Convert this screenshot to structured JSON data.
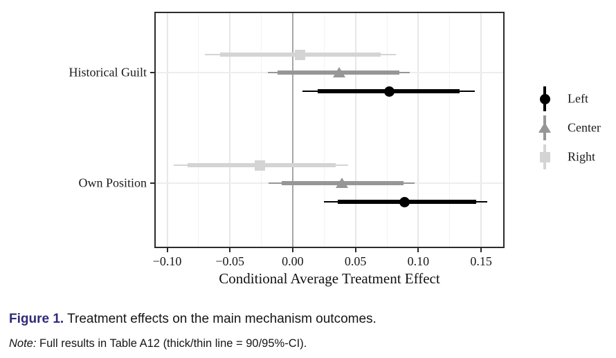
{
  "figure": {
    "caption_label": "Figure 1.",
    "caption_text": " Treatment effects on the main mechanism outcomes.",
    "note_label": "Note:",
    "note_text": " Full results in Table A12 (thick/thin line = 90/95%-CI).",
    "caption_label_color": "#2e2a78"
  },
  "chart_data": {
    "type": "pointrange-forest",
    "title": "",
    "xlabel": "Conditional Average Treatment Effect",
    "ylabel": "",
    "xlim": [
      -0.1091,
      0.1676
    ],
    "x_ticks": [
      -0.1,
      -0.05,
      0.0,
      0.05,
      0.1,
      0.15
    ],
    "x_tick_labels": [
      "−0.10",
      "−0.05",
      "0.00",
      "0.05",
      "0.10",
      "0.15"
    ],
    "x_minor_ticks": [
      -0.075,
      -0.025,
      0.025,
      0.075,
      0.125
    ],
    "categories": [
      "Historical Guilt",
      "Own Position"
    ],
    "zero_line": 0,
    "grid": "major+minor vertical, major horizontal at categories",
    "ci_note": "thick line = 90% CI, thin line = 95% CI",
    "legend": {
      "position": "right",
      "entries": [
        {
          "label": "Left",
          "marker": "circle",
          "color": "#000000"
        },
        {
          "label": "Center",
          "marker": "triangle",
          "color": "#969696"
        },
        {
          "label": "Right",
          "marker": "square",
          "color": "#d4d4d4"
        }
      ]
    },
    "series": [
      {
        "name": "Left",
        "marker": "circle",
        "color": "#000000",
        "points": [
          {
            "category": "Historical Guilt",
            "estimate": 0.077,
            "ci90": [
              0.02,
              0.133
            ],
            "ci95": [
              0.008,
              0.145
            ]
          },
          {
            "category": "Own Position",
            "estimate": 0.089,
            "ci90": [
              0.036,
              0.146
            ],
            "ci95": [
              0.025,
              0.155
            ]
          }
        ]
      },
      {
        "name": "Center",
        "marker": "triangle",
        "color": "#969696",
        "points": [
          {
            "category": "Historical Guilt",
            "estimate": 0.037,
            "ci90": [
              -0.012,
              0.085
            ],
            "ci95": [
              -0.02,
              0.093
            ]
          },
          {
            "category": "Own Position",
            "estimate": 0.039,
            "ci90": [
              -0.009,
              0.088
            ],
            "ci95": [
              -0.019,
              0.097
            ]
          }
        ]
      },
      {
        "name": "Right",
        "marker": "square",
        "color": "#d4d4d4",
        "points": [
          {
            "category": "Historical Guilt",
            "estimate": 0.006,
            "ci90": [
              -0.058,
              0.07
            ],
            "ci95": [
              -0.07,
              0.082
            ]
          },
          {
            "category": "Own Position",
            "estimate": -0.026,
            "ci90": [
              -0.084,
              0.034
            ],
            "ci95": [
              -0.095,
              0.044
            ]
          }
        ]
      }
    ]
  },
  "colors": {
    "panel_border": "#2b2b2b",
    "zero_line": "#a6a6a6",
    "grid_major": "#e7e7e7",
    "grid_minor": "#f2f2f2"
  }
}
